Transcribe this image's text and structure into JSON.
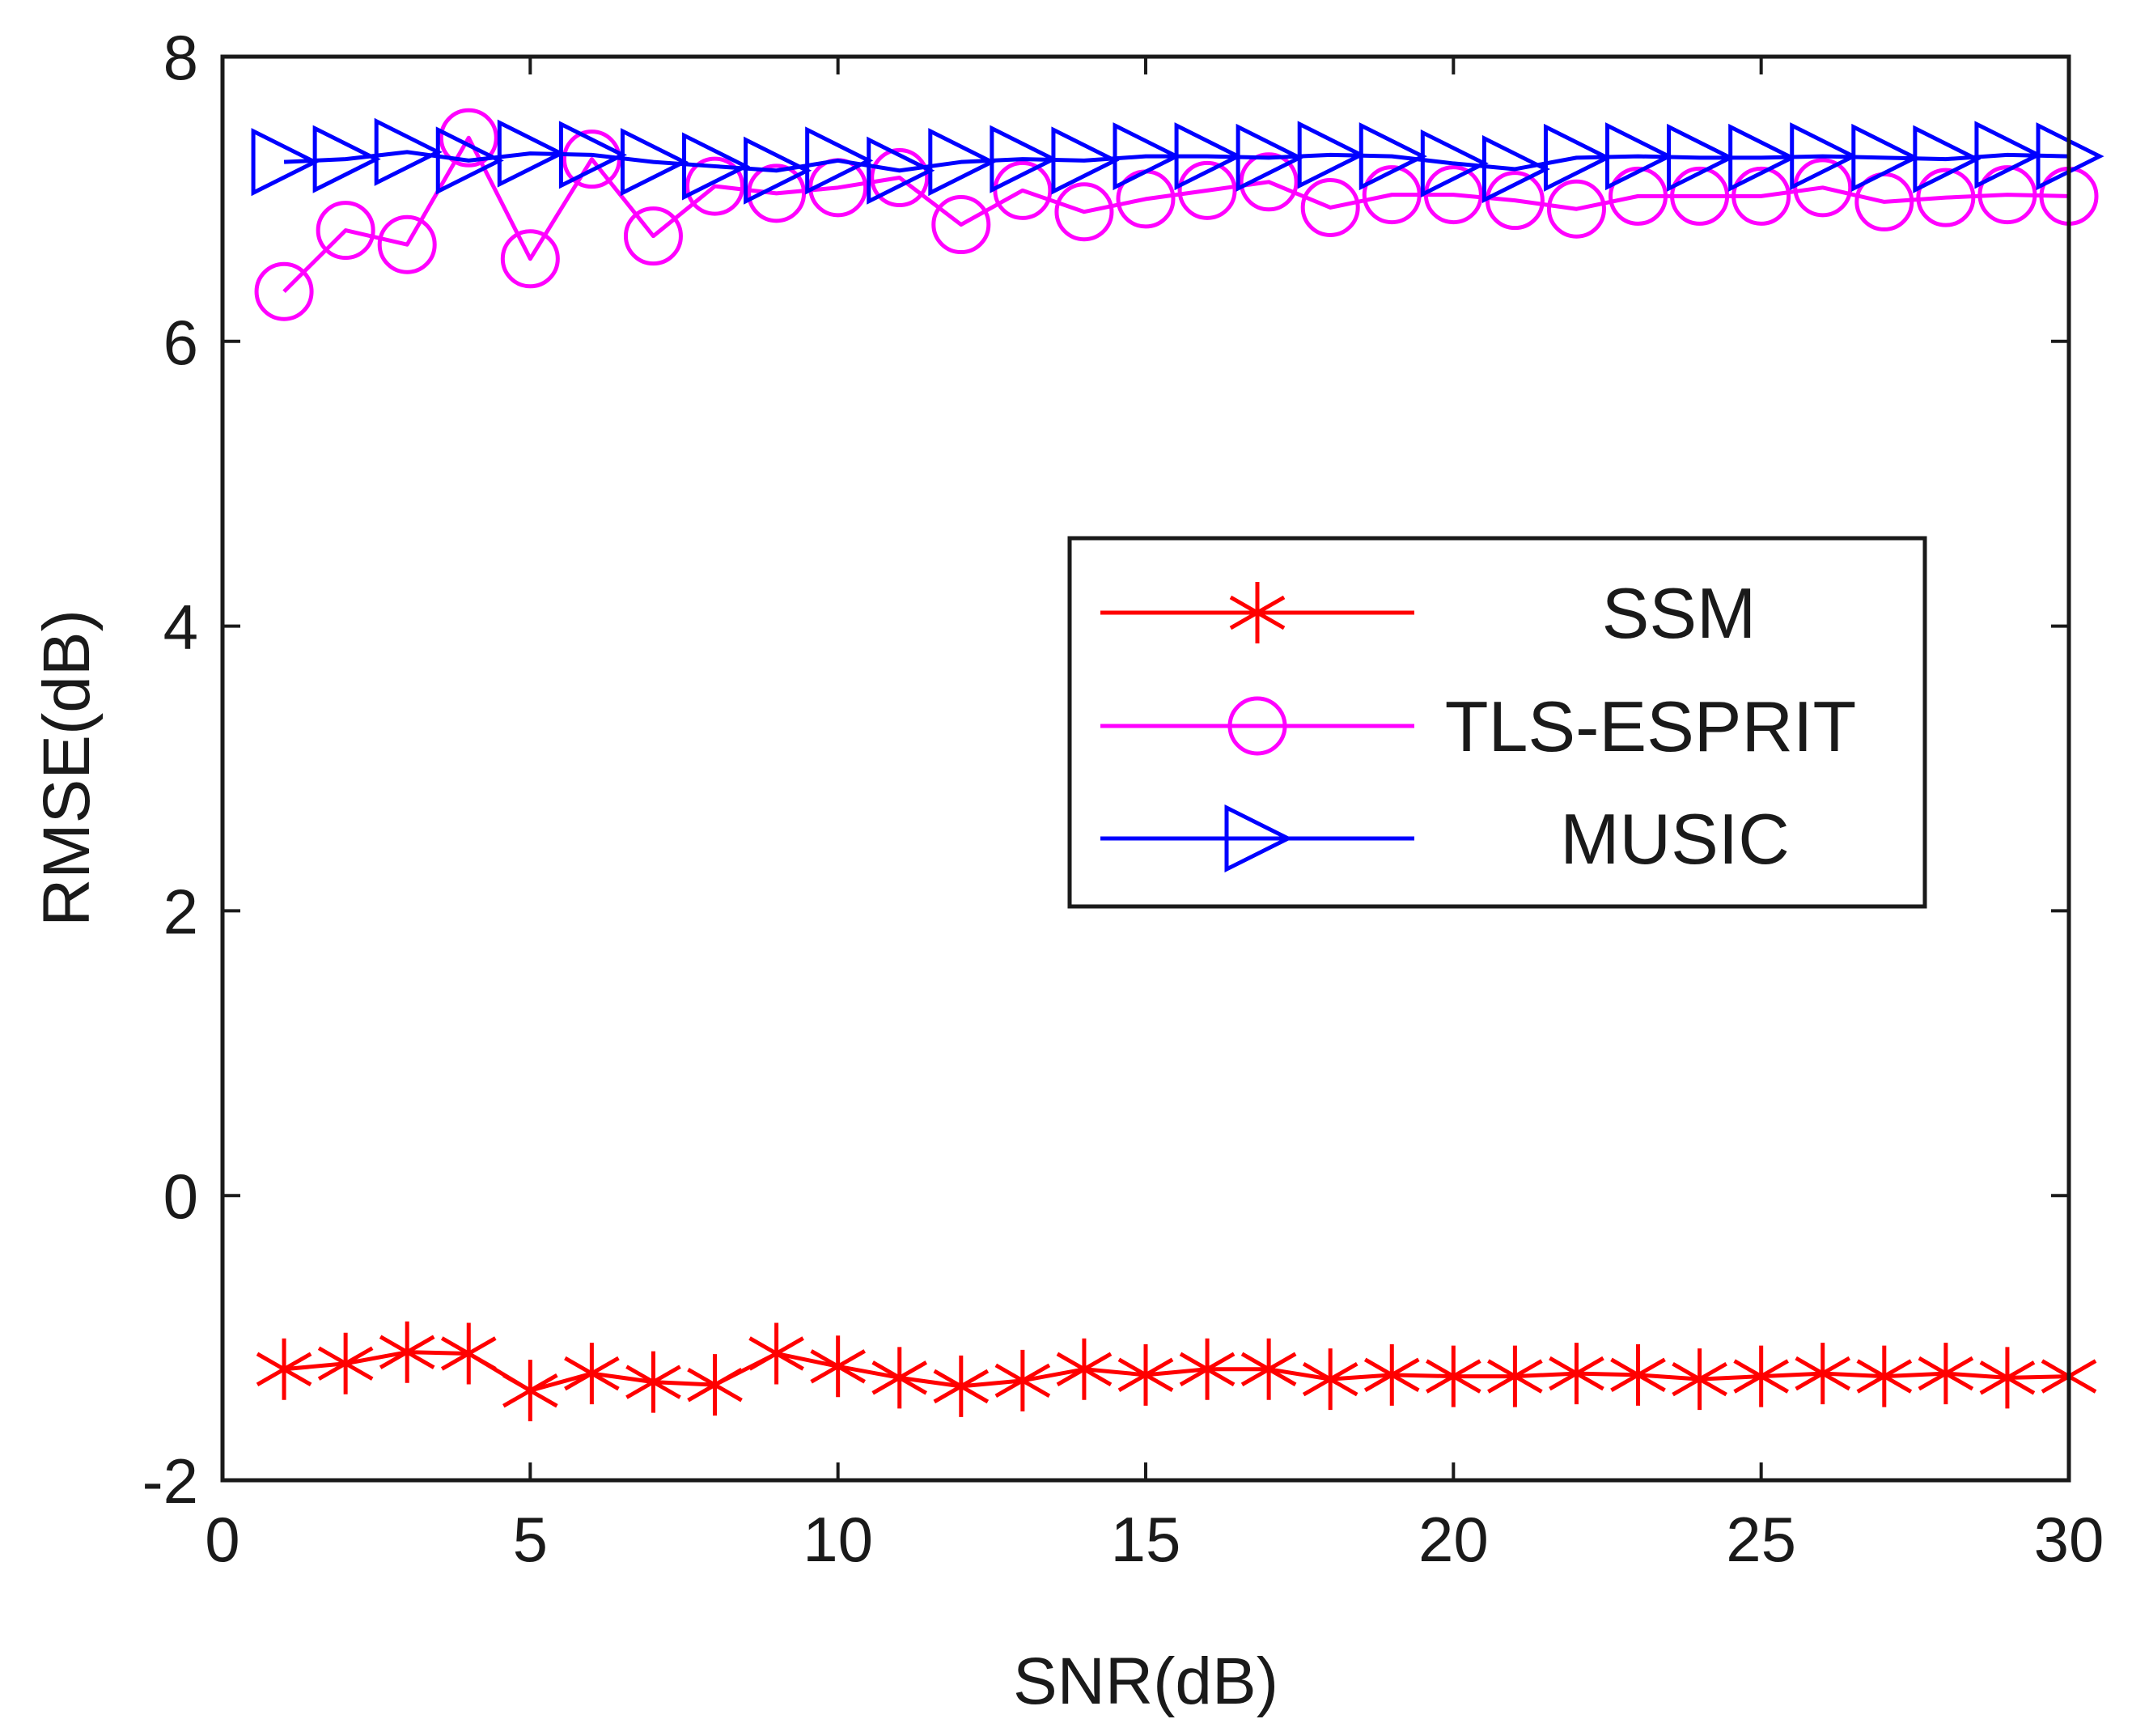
{
  "chart_data": {
    "type": "line",
    "title": "",
    "xlabel": "SNR(dB)",
    "ylabel": "RMSE(dB)",
    "xlim": [
      0,
      30
    ],
    "ylim": [
      -2,
      8
    ],
    "xticks": [
      "0",
      "5",
      "10",
      "15",
      "20",
      "25",
      "30"
    ],
    "yticks": [
      "-2",
      "0",
      "2",
      "4",
      "6",
      "8"
    ],
    "grid": false,
    "legend_position": "center-right",
    "x": [
      1,
      2,
      3,
      4,
      5,
      6,
      7,
      8,
      9,
      10,
      11,
      12,
      13,
      14,
      15,
      16,
      17,
      18,
      19,
      20,
      21,
      22,
      23,
      24,
      25,
      26,
      27,
      28,
      29,
      30
    ],
    "series": [
      {
        "name": "SSM",
        "color": "#ff0000",
        "marker": "asterisk",
        "values": [
          -1.22,
          -1.18,
          -1.1,
          -1.11,
          -1.37,
          -1.25,
          -1.31,
          -1.33,
          -1.11,
          -1.2,
          -1.28,
          -1.34,
          -1.3,
          -1.22,
          -1.26,
          -1.22,
          -1.22,
          -1.29,
          -1.26,
          -1.27,
          -1.27,
          -1.25,
          -1.26,
          -1.29,
          -1.27,
          -1.25,
          -1.27,
          -1.25,
          -1.28,
          -1.27
        ]
      },
      {
        "name": "TLS-ESPRIT",
        "color": "#ff00ff",
        "marker": "circle",
        "values": [
          6.35,
          6.78,
          6.68,
          7.43,
          6.58,
          7.28,
          6.74,
          7.09,
          7.04,
          7.08,
          7.15,
          6.82,
          7.06,
          6.91,
          7.0,
          7.06,
          7.12,
          6.94,
          7.03,
          7.03,
          6.99,
          6.93,
          7.02,
          7.02,
          7.02,
          7.08,
          6.98,
          7.01,
          7.03,
          7.02
        ]
      },
      {
        "name": "MUSIC",
        "color": "#0000ff",
        "marker": "triangle-right",
        "values": [
          7.26,
          7.28,
          7.33,
          7.27,
          7.32,
          7.31,
          7.26,
          7.23,
          7.2,
          7.27,
          7.2,
          7.26,
          7.28,
          7.27,
          7.3,
          7.3,
          7.29,
          7.31,
          7.3,
          7.25,
          7.21,
          7.29,
          7.3,
          7.29,
          7.29,
          7.3,
          7.29,
          7.28,
          7.31,
          7.3
        ]
      }
    ]
  }
}
